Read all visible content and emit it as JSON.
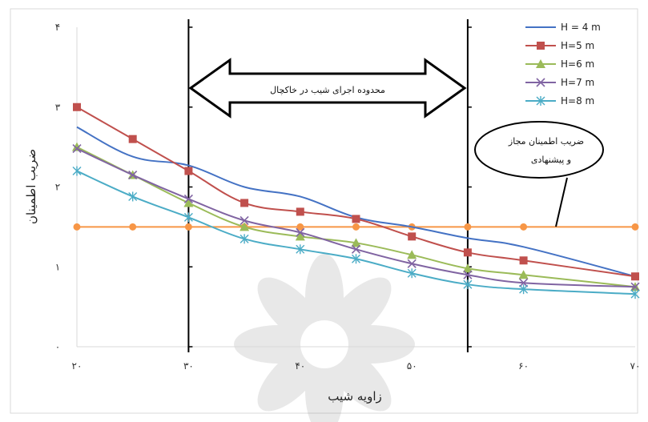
{
  "chart_data": {
    "type": "line",
    "title": "",
    "xlabel": "زاویه شیب",
    "ylabel": "ضریب اطمینان",
    "xlim": [
      20,
      70
    ],
    "ylim": [
      0,
      4
    ],
    "x_ticks": [
      20,
      30,
      40,
      50,
      60,
      70
    ],
    "x_tick_labels": [
      "۲۰",
      "۳۰",
      "۴۰",
      "۵۰",
      "۶۰",
      "۷۰"
    ],
    "y_ticks": [
      0,
      1,
      2,
      3,
      4
    ],
    "y_tick_labels": [
      "۰",
      "۱",
      "۲",
      "۳",
      "۴"
    ],
    "grid": false,
    "legend_position": "top-right",
    "x": [
      20,
      25,
      30,
      35,
      40,
      45,
      50,
      55,
      60,
      70
    ],
    "series": [
      {
        "name": "H = 4 m",
        "color": "#4472c4",
        "marker": "none",
        "values": [
          2.75,
          2.38,
          2.27,
          2.0,
          1.88,
          1.62,
          1.5,
          1.36,
          1.25,
          0.88
        ]
      },
      {
        "name": "H=5 m",
        "color": "#c0504d",
        "marker": "square",
        "values": [
          3.0,
          2.6,
          2.2,
          1.8,
          1.69,
          1.6,
          1.38,
          1.18,
          1.08,
          0.88
        ]
      },
      {
        "name": "H=6 m",
        "color": "#9bbb59",
        "marker": "triangle",
        "values": [
          2.5,
          2.15,
          1.8,
          1.5,
          1.38,
          1.3,
          1.15,
          0.98,
          0.9,
          0.75
        ]
      },
      {
        "name": "H=7 m",
        "color": "#8064a2",
        "marker": "x",
        "values": [
          2.48,
          2.15,
          1.85,
          1.58,
          1.43,
          1.22,
          1.04,
          0.9,
          0.8,
          0.75
        ]
      },
      {
        "name": "H=8 m",
        "color": "#4bacc6",
        "marker": "star",
        "values": [
          2.2,
          1.88,
          1.62,
          1.35,
          1.22,
          1.1,
          0.92,
          0.78,
          0.72,
          0.66
        ]
      },
      {
        "name": "",
        "color": "#f79646",
        "marker": "circle",
        "legend": false,
        "values": [
          1.5,
          1.5,
          1.5,
          1.5,
          1.5,
          1.5,
          1.5,
          1.5,
          1.5,
          1.5
        ]
      }
    ],
    "vertical_lines": [
      30,
      55
    ],
    "arrow_label": "محدوده اجرای شیب در خاکچال",
    "callout_text_line1": "ضریب اطمینان مجاز",
    "callout_text_line2": "و پیشنهادی"
  }
}
